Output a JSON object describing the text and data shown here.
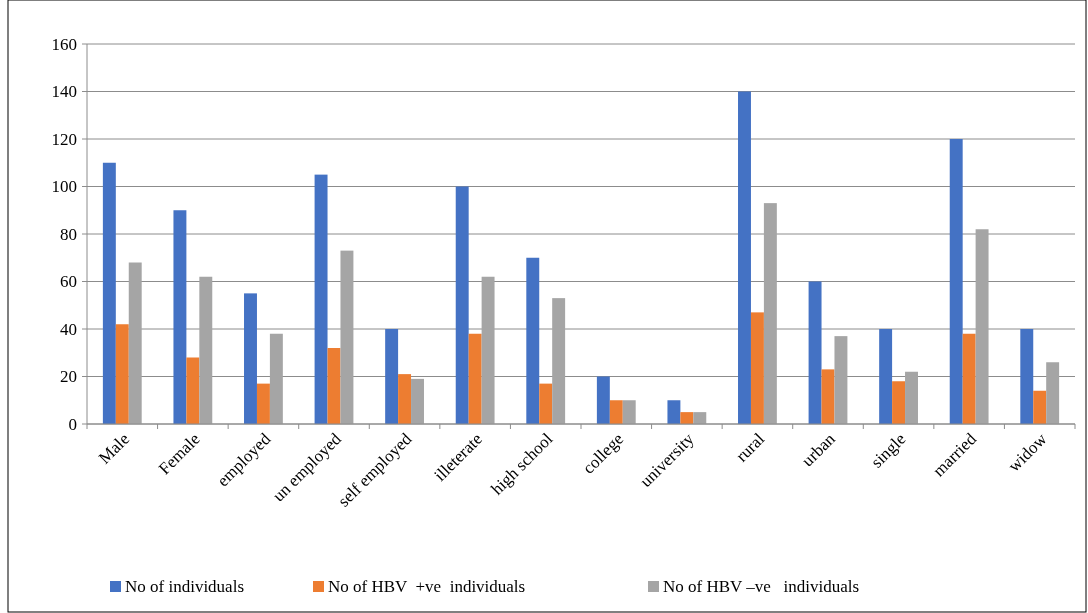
{
  "chart_data": {
    "type": "bar",
    "categories": [
      "Male",
      "Female",
      "employed",
      "un employed",
      "self employed",
      "illeterate",
      "high school",
      "college",
      "university",
      "rural",
      "urban",
      "single",
      "married",
      "widow"
    ],
    "series": [
      {
        "name": "No of individuals",
        "color": "#4472c4",
        "values": [
          110,
          90,
          55,
          105,
          40,
          100,
          70,
          20,
          10,
          140,
          60,
          40,
          120,
          40
        ]
      },
      {
        "name": "No of HBV  +ve  individuals",
        "color": "#ed7d31",
        "values": [
          42,
          28,
          17,
          32,
          21,
          38,
          17,
          10,
          5,
          47,
          23,
          18,
          38,
          14
        ]
      },
      {
        "name": "No of HBV –ve   individuals",
        "color": "#a5a5a5",
        "values": [
          68,
          62,
          38,
          73,
          19,
          62,
          53,
          10,
          5,
          93,
          37,
          22,
          82,
          26
        ]
      }
    ],
    "ylim": [
      0,
      160
    ],
    "yticks": [
      0,
      20,
      40,
      60,
      80,
      100,
      120,
      140,
      160
    ],
    "grid": "y",
    "legend": "bottom"
  }
}
